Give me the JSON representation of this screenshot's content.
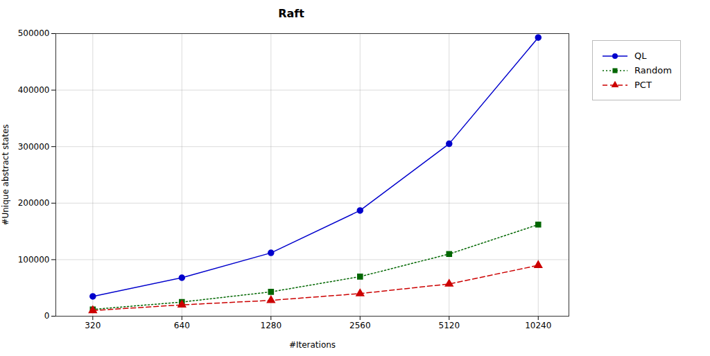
{
  "chart_data": {
    "type": "line",
    "title": "Raft",
    "xlabel": "#Iterations",
    "ylabel": "#Unique abstract states",
    "x": [
      320,
      640,
      1280,
      2560,
      5120,
      10240
    ],
    "series": [
      {
        "name": "QL",
        "color": "#0000cc",
        "values": [
          35000,
          68000,
          112000,
          187000,
          305000,
          493000
        ],
        "marker": "circle",
        "line_style": "solid"
      },
      {
        "name": "Random",
        "color": "#006600",
        "values": [
          12000,
          25000,
          43000,
          70000,
          110000,
          162000
        ],
        "marker": "square",
        "line_style": "dotted"
      },
      {
        "name": "PCT",
        "color": "#cc0000",
        "values": [
          10000,
          20000,
          28000,
          40000,
          57000,
          90000
        ],
        "marker": "triangle",
        "line_style": "dashed"
      }
    ],
    "log": "x",
    "xlim": [
      240,
      13000
    ],
    "xticks": [
      320,
      640,
      1280,
      2560,
      5120,
      10240
    ],
    "ylim": [
      0,
      500000
    ],
    "yticks": [
      0,
      100000,
      200000,
      300000,
      400000,
      500000
    ],
    "grid": true,
    "legend": "right"
  }
}
